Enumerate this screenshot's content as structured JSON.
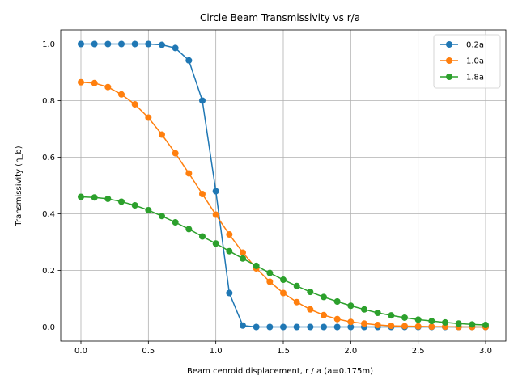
{
  "chart_data": {
    "type": "line",
    "title": "Circle Beam Transmissivity vs r/a",
    "xlabel": "Beam cenroid displacement,  r / a (a=0.175m)",
    "ylabel": "Transmissivity (η_b)",
    "xlim": [
      -0.15,
      3.15
    ],
    "ylim": [
      -0.05,
      1.05
    ],
    "xticks": [
      0.0,
      0.5,
      1.0,
      1.5,
      2.0,
      2.5,
      3.0
    ],
    "xtick_labels": [
      "0.0",
      "0.5",
      "1.0",
      "1.5",
      "2.0",
      "2.5",
      "3.0"
    ],
    "yticks": [
      0.0,
      0.2,
      0.4,
      0.6,
      0.8,
      1.0
    ],
    "ytick_labels": [
      "0.0",
      "0.2",
      "0.4",
      "0.6",
      "0.8",
      "1.0"
    ],
    "grid": true,
    "legend_position": "top-right",
    "x": [
      0.0,
      0.1,
      0.2,
      0.3,
      0.4,
      0.5,
      0.6,
      0.7,
      0.8,
      0.9,
      1.0,
      1.1,
      1.2,
      1.3,
      1.4,
      1.5,
      1.6,
      1.7,
      1.8,
      1.9,
      2.0,
      2.1,
      2.2,
      2.3,
      2.4,
      2.5,
      2.6,
      2.7,
      2.8,
      2.9,
      3.0
    ],
    "series": [
      {
        "name": "0.2a",
        "color": "#1f77b4",
        "values": [
          1.0,
          1.0,
          1.0,
          1.0,
          1.0,
          1.0,
          0.997,
          0.986,
          0.942,
          0.8,
          0.48,
          0.12,
          0.005,
          0.0,
          0.0,
          0.0,
          0.0,
          0.0,
          0.0,
          0.0,
          0.0,
          0.0,
          0.0,
          0.0,
          0.0,
          0.0,
          0.0,
          0.0,
          0.0,
          0.0,
          0.0
        ]
      },
      {
        "name": "1.0a",
        "color": "#ff7f0e",
        "values": [
          0.865,
          0.862,
          0.848,
          0.822,
          0.787,
          0.74,
          0.68,
          0.614,
          0.543,
          0.47,
          0.397,
          0.327,
          0.263,
          0.207,
          0.16,
          0.12,
          0.088,
          0.062,
          0.042,
          0.028,
          0.018,
          0.012,
          0.007,
          0.004,
          0.003,
          0.002,
          0.001,
          0.001,
          0.0,
          0.0,
          0.0
        ]
      },
      {
        "name": "1.8a",
        "color": "#2ca02c",
        "values": [
          0.46,
          0.458,
          0.453,
          0.443,
          0.43,
          0.413,
          0.392,
          0.37,
          0.346,
          0.32,
          0.295,
          0.268,
          0.242,
          0.216,
          0.191,
          0.167,
          0.145,
          0.124,
          0.106,
          0.09,
          0.075,
          0.062,
          0.05,
          0.041,
          0.033,
          0.026,
          0.021,
          0.016,
          0.012,
          0.009,
          0.007
        ]
      }
    ]
  }
}
